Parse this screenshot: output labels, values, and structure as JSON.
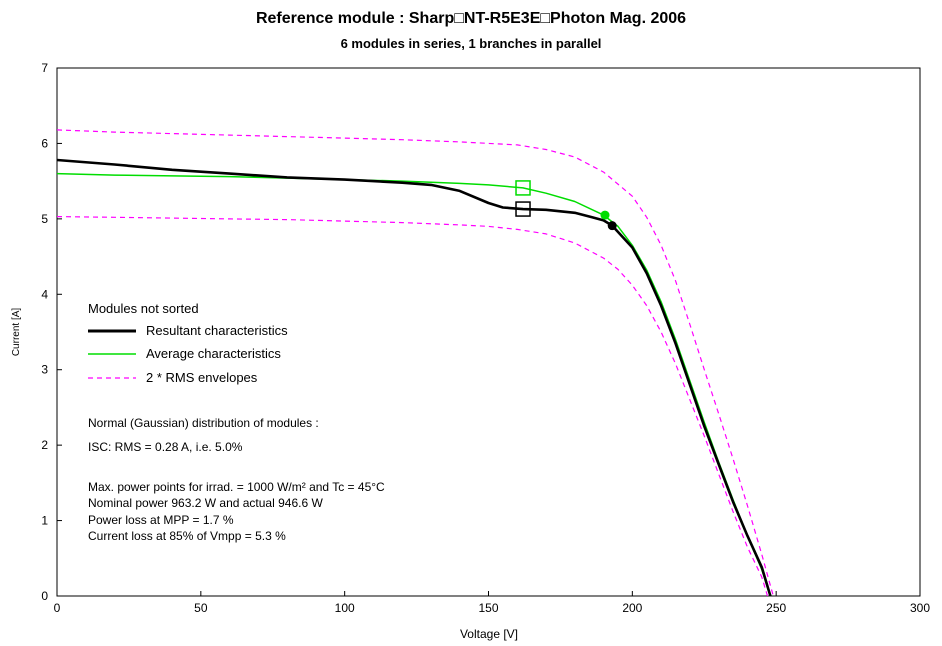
{
  "chart_data": {
    "type": "line",
    "title": "Reference module : Sharp□NT-R5E3E□Photon Mag. 2006",
    "subtitle": "6 modules in series,  1 branches in parallel",
    "xlabel": "Voltage [V]",
    "ylabel": "Current [A]",
    "xlim": [
      0,
      300
    ],
    "ylim": [
      0,
      7
    ],
    "x_ticks": [
      "0",
      "50",
      "100",
      "150",
      "200",
      "250",
      "300"
    ],
    "y_ticks": [
      "0",
      "1",
      "2",
      "3",
      "4",
      "5",
      "6",
      "7"
    ],
    "grid": false,
    "legend": {
      "header": "Modules not sorted",
      "entries": [
        {
          "label": "Resultant characteristics",
          "color": "#000000",
          "style": "solid"
        },
        {
          "label": "Average characteristics",
          "color": "#00dd00",
          "style": "solid"
        },
        {
          "label": "2 * RMS  envelopes",
          "color": "#ff00ff",
          "style": "dashed"
        }
      ]
    },
    "annotations": [
      "Normal (Gaussian) distribution of modules :",
      "ISC: RMS =  0.28 A, i.e.  5.0%",
      "Max. power points for irrad.  = 1000 W/m² and Tc =   45°C",
      "Nominal power   963.2 W  and actual   946.6 W",
      "Power loss at MPP =  1.7 %",
      "Current loss at 85% of  Vmpp =  5.3 %"
    ],
    "series": [
      {
        "name": "Resultant characteristics",
        "color": "#000000",
        "style": "solid",
        "points": [
          [
            0,
            5.78
          ],
          [
            20,
            5.72
          ],
          [
            40,
            5.65
          ],
          [
            60,
            5.6
          ],
          [
            80,
            5.55
          ],
          [
            100,
            5.52
          ],
          [
            120,
            5.48
          ],
          [
            130,
            5.45
          ],
          [
            140,
            5.37
          ],
          [
            150,
            5.21
          ],
          [
            155,
            5.15
          ],
          [
            162,
            5.13
          ],
          [
            170,
            5.12
          ],
          [
            180,
            5.08
          ],
          [
            186,
            5.02
          ],
          [
            190,
            4.98
          ],
          [
            193,
            4.91
          ],
          [
            200,
            4.62
          ],
          [
            205,
            4.28
          ],
          [
            210,
            3.85
          ],
          [
            215,
            3.35
          ],
          [
            220,
            2.8
          ],
          [
            225,
            2.25
          ],
          [
            230,
            1.75
          ],
          [
            235,
            1.25
          ],
          [
            240,
            0.8
          ],
          [
            245,
            0.38
          ],
          [
            248,
            0.0
          ]
        ]
      },
      {
        "name": "Average characteristics",
        "color": "#00dd00",
        "style": "solid",
        "points": [
          [
            0,
            5.6
          ],
          [
            20,
            5.58
          ],
          [
            40,
            5.57
          ],
          [
            60,
            5.56
          ],
          [
            80,
            5.54
          ],
          [
            100,
            5.52
          ],
          [
            120,
            5.5
          ],
          [
            140,
            5.47
          ],
          [
            150,
            5.45
          ],
          [
            162,
            5.41
          ],
          [
            170,
            5.34
          ],
          [
            180,
            5.23
          ],
          [
            190,
            5.05
          ],
          [
            195,
            4.9
          ],
          [
            200,
            4.65
          ],
          [
            205,
            4.32
          ],
          [
            210,
            3.9
          ],
          [
            215,
            3.4
          ],
          [
            220,
            2.85
          ],
          [
            225,
            2.3
          ],
          [
            230,
            1.78
          ],
          [
            235,
            1.28
          ],
          [
            240,
            0.8
          ],
          [
            245,
            0.35
          ],
          [
            248,
            0.0
          ]
        ]
      },
      {
        "name": "2 * RMS envelope (upper)",
        "color": "#ff00ff",
        "style": "dashed",
        "points": [
          [
            0,
            6.18
          ],
          [
            20,
            6.15
          ],
          [
            40,
            6.13
          ],
          [
            60,
            6.11
          ],
          [
            80,
            6.09
          ],
          [
            100,
            6.07
          ],
          [
            120,
            6.05
          ],
          [
            140,
            6.02
          ],
          [
            160,
            5.98
          ],
          [
            170,
            5.92
          ],
          [
            180,
            5.82
          ],
          [
            190,
            5.62
          ],
          [
            200,
            5.3
          ],
          [
            205,
            5.02
          ],
          [
            210,
            4.65
          ],
          [
            215,
            4.18
          ],
          [
            220,
            3.6
          ],
          [
            225,
            3.0
          ],
          [
            230,
            2.42
          ],
          [
            235,
            1.82
          ],
          [
            240,
            1.2
          ],
          [
            245,
            0.55
          ],
          [
            249,
            0.0
          ]
        ]
      },
      {
        "name": "2 * RMS envelope (lower)",
        "color": "#ff00ff",
        "style": "dashed",
        "points": [
          [
            0,
            5.03
          ],
          [
            20,
            5.02
          ],
          [
            40,
            5.01
          ],
          [
            60,
            5.0
          ],
          [
            80,
            4.99
          ],
          [
            100,
            4.97
          ],
          [
            120,
            4.95
          ],
          [
            140,
            4.92
          ],
          [
            150,
            4.9
          ],
          [
            160,
            4.86
          ],
          [
            170,
            4.8
          ],
          [
            180,
            4.68
          ],
          [
            190,
            4.48
          ],
          [
            195,
            4.33
          ],
          [
            200,
            4.12
          ],
          [
            205,
            3.85
          ],
          [
            210,
            3.5
          ],
          [
            215,
            3.08
          ],
          [
            220,
            2.6
          ],
          [
            225,
            2.12
          ],
          [
            230,
            1.62
          ],
          [
            235,
            1.12
          ],
          [
            240,
            0.65
          ],
          [
            245,
            0.25
          ],
          [
            247,
            0.0
          ]
        ]
      }
    ],
    "markers": [
      {
        "name": "resultant-85pct-point",
        "type": "square",
        "x": 162,
        "y": 5.13,
        "color": "#000000"
      },
      {
        "name": "average-85pct-point",
        "type": "square",
        "x": 162,
        "y": 5.41,
        "color": "#00dd00"
      },
      {
        "name": "resultant-mpp",
        "type": "dot",
        "x": 193,
        "y": 4.91,
        "color": "#000000"
      },
      {
        "name": "average-mpp",
        "type": "dot",
        "x": 190.5,
        "y": 5.05,
        "color": "#00dd00"
      }
    ]
  }
}
